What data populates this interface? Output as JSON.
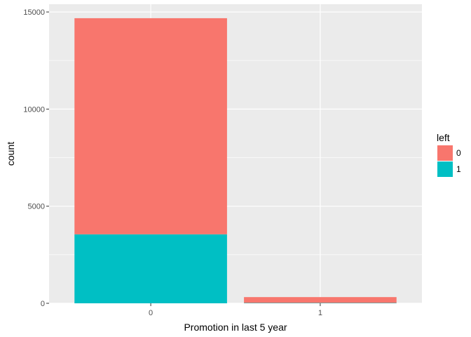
{
  "chart_data": {
    "type": "bar",
    "stacked": true,
    "categories": [
      "0",
      "1"
    ],
    "series": [
      {
        "name": "0",
        "values": [
          11128,
          300
        ],
        "color": "#F8766D"
      },
      {
        "name": "1",
        "values": [
          3552,
          19
        ],
        "color": "#00BFC4"
      }
    ],
    "xlabel": "Promotion in last 5 year",
    "ylabel": "count",
    "ylim": [
      0,
      15400
    ],
    "yticks": [
      0,
      5000,
      10000,
      15000
    ],
    "ytick_labels": [
      "0",
      "5000",
      "10000",
      "15000"
    ],
    "grid": true,
    "legend": {
      "title": "left",
      "placement": "right",
      "entries": [
        "0",
        "1"
      ]
    },
    "panel_background": "#EBEBEB",
    "grid_color": "#FFFFFF"
  }
}
